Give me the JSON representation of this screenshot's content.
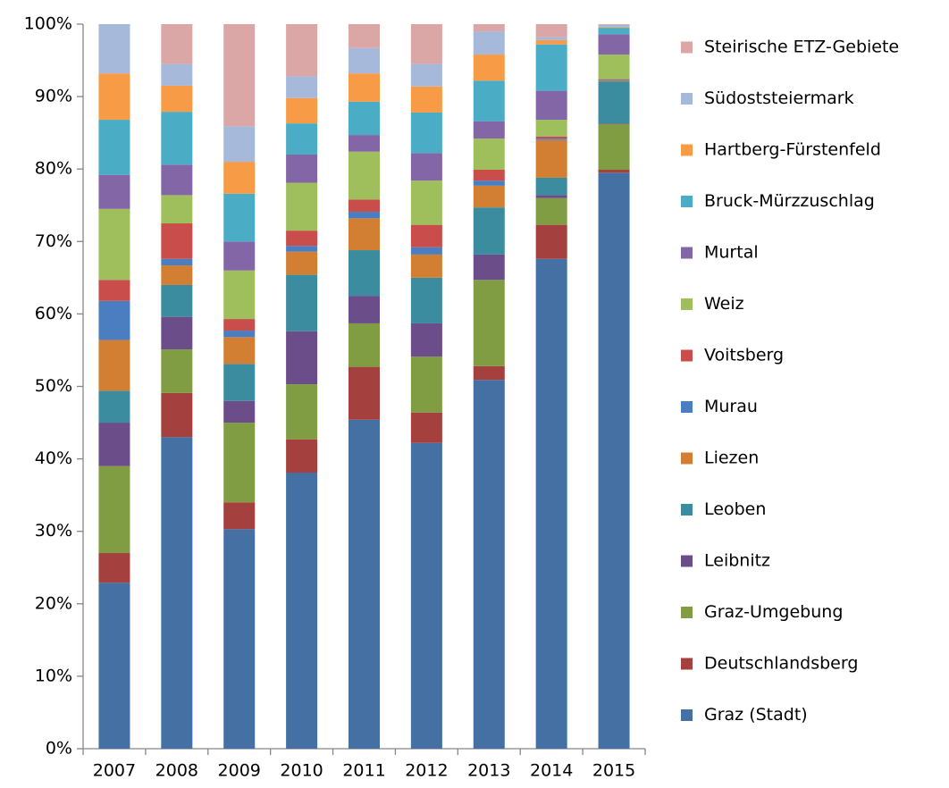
{
  "chart_data": {
    "type": "stacked_bar_100",
    "categories": [
      "2007",
      "2008",
      "2009",
      "2010",
      "2011",
      "2012",
      "2013",
      "2014",
      "2015"
    ],
    "series": [
      {
        "name": "Graz (Stadt)",
        "color": "#4470A4",
        "values": [
          22.9,
          43.0,
          30.3,
          38.1,
          45.4,
          42.2,
          50.9,
          67.6,
          79.5
        ]
      },
      {
        "name": "Deutschlandsberg",
        "color": "#A4403E",
        "values": [
          4.1,
          6.1,
          3.7,
          4.6,
          7.3,
          4.2,
          1.9,
          4.7,
          0.4
        ]
      },
      {
        "name": "Graz-Umgebung",
        "color": "#809D44",
        "values": [
          12.0,
          6.0,
          11.0,
          7.6,
          6.0,
          7.7,
          11.9,
          3.7,
          6.3
        ]
      },
      {
        "name": "Leibnitz",
        "color": "#6B4D8A",
        "values": [
          6.0,
          4.5,
          3.0,
          7.3,
          3.8,
          4.6,
          3.5,
          0.4,
          0.1
        ]
      },
      {
        "name": "Leoben",
        "color": "#3A8C9E",
        "values": [
          4.4,
          4.4,
          5.1,
          7.8,
          6.3,
          6.3,
          6.5,
          2.4,
          5.8
        ]
      },
      {
        "name": "Liezen",
        "color": "#D27F33",
        "values": [
          7.0,
          2.7,
          3.7,
          3.2,
          4.4,
          3.2,
          3.0,
          5.2,
          0.1
        ]
      },
      {
        "name": "Murau",
        "color": "#4A7EC0",
        "values": [
          5.4,
          0.9,
          0.9,
          0.8,
          0.9,
          1.0,
          0.7,
          0.2,
          0.1
        ]
      },
      {
        "name": "Voitsberg",
        "color": "#C94D4B",
        "values": [
          2.9,
          4.9,
          1.6,
          2.1,
          1.7,
          3.1,
          1.5,
          0.3,
          0.1
        ]
      },
      {
        "name": "Weiz",
        "color": "#9EBF5C",
        "values": [
          9.8,
          3.9,
          6.7,
          6.6,
          6.6,
          6.1,
          4.3,
          2.3,
          3.4
        ]
      },
      {
        "name": "Murtal",
        "color": "#8266A5",
        "values": [
          4.7,
          4.2,
          4.0,
          3.9,
          2.3,
          3.8,
          2.4,
          4.0,
          2.8
        ]
      },
      {
        "name": "Bruck-Mürzzuschlag",
        "color": "#4BADC5",
        "values": [
          7.6,
          7.3,
          6.6,
          4.3,
          4.6,
          5.6,
          5.6,
          6.4,
          0.9
        ]
      },
      {
        "name": "Hartberg-Fürstenfeld",
        "color": "#F79B47",
        "values": [
          6.4,
          3.6,
          4.4,
          3.5,
          3.9,
          3.6,
          3.6,
          0.6,
          0.1
        ]
      },
      {
        "name": "Südoststeiermark",
        "color": "#A6B9DA",
        "values": [
          6.8,
          3.0,
          4.9,
          3.0,
          3.5,
          3.1,
          3.2,
          0.4,
          0.3
        ]
      },
      {
        "name": "Steirische ETZ-Gebiete",
        "color": "#DBA6A6",
        "values": [
          0,
          5.5,
          14.1,
          7.2,
          3.3,
          5.5,
          1.0,
          1.8,
          0.1
        ]
      }
    ],
    "ylim": [
      0,
      100
    ],
    "yticks": [
      {
        "value": 0,
        "label": "0%"
      },
      {
        "value": 10,
        "label": "10%"
      },
      {
        "value": 20,
        "label": "20%"
      },
      {
        "value": 30,
        "label": "30%"
      },
      {
        "value": 40,
        "label": "40%"
      },
      {
        "value": 50,
        "label": "50%"
      },
      {
        "value": 60,
        "label": "60%"
      },
      {
        "value": 70,
        "label": "70%"
      },
      {
        "value": 80,
        "label": "80%"
      },
      {
        "value": 90,
        "label": "90%"
      },
      {
        "value": 100,
        "label": "100%"
      }
    ],
    "grid": false,
    "legend": "right"
  }
}
